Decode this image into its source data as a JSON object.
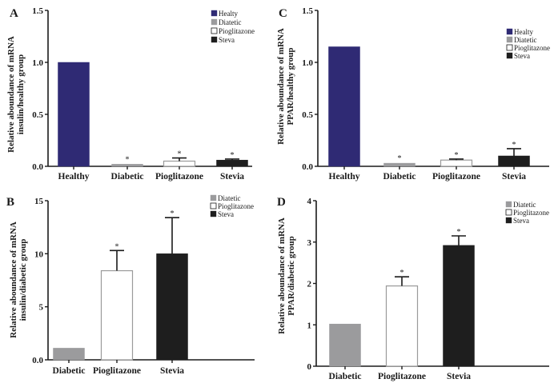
{
  "colors": {
    "healthy": "#2f2a74",
    "diabetic": "#9b9b9d",
    "pioglitazone": "#ffffff",
    "stevia": "#1e1e1e",
    "axis": "#1a1a1a",
    "outline": "#9a9a9a"
  },
  "chart_data": [
    {
      "id": "A",
      "type": "bar",
      "panel_label": "A",
      "title": "",
      "xlabel": "",
      "ylabel_lines": [
        "Relative aboundance of mRNA",
        "insulin/healthy group"
      ],
      "categories": [
        "Healthy",
        "Diabetic",
        "Pioglitazone",
        "Stevia"
      ],
      "series_keys": [
        "healthy",
        "diabetic",
        "pioglitazone",
        "stevia"
      ],
      "values": [
        1.0,
        0.02,
        0.05,
        0.06
      ],
      "error_upper": [
        null,
        null,
        0.08,
        0.07
      ],
      "significance": [
        "",
        "*",
        "*",
        "*"
      ],
      "ylim": [
        0,
        1.5
      ],
      "yticks": [
        0.0,
        0.5,
        1.0,
        1.5
      ],
      "ytick_labels": [
        "0.0",
        "0.5",
        "1.0",
        "1.5"
      ],
      "grid": false,
      "legend": {
        "position": "top-right",
        "entries": [
          {
            "label": "Healty",
            "key": "healthy"
          },
          {
            "label": "Diatetic",
            "key": "diabetic"
          },
          {
            "label": "Pioglitazone",
            "key": "pioglitazone"
          },
          {
            "label": "Steva",
            "key": "stevia"
          }
        ]
      }
    },
    {
      "id": "B",
      "type": "bar",
      "panel_label": "B",
      "title": "",
      "xlabel": "",
      "ylabel_lines": [
        "Relative aboundance of mRNA",
        "insulin/diabetic group"
      ],
      "categories": [
        "Diabetic",
        "Pioglitazone",
        "Stevia"
      ],
      "series_keys": [
        "diabetic",
        "pioglitazone",
        "stevia"
      ],
      "values": [
        1.1,
        8.4,
        10.0
      ],
      "error_upper": [
        null,
        10.3,
        13.4
      ],
      "significance": [
        "",
        "*",
        "*"
      ],
      "ylim": [
        0,
        15
      ],
      "yticks": [
        0,
        5,
        10,
        15
      ],
      "ytick_labels": [
        "0.0",
        "5",
        "10",
        "15"
      ],
      "grid": false,
      "legend": {
        "position": "top-right",
        "entries": [
          {
            "label": "Diatetic",
            "key": "diabetic"
          },
          {
            "label": "Pioglitazone",
            "key": "pioglitazone"
          },
          {
            "label": "Steva",
            "key": "stevia"
          }
        ]
      }
    },
    {
      "id": "C",
      "type": "bar",
      "panel_label": "C",
      "title": "",
      "xlabel": "",
      "ylabel_lines": [
        "Relative aboundance of mRNA",
        "PPAR/healthy group"
      ],
      "categories": [
        "Healthy",
        "Diabetic",
        "Pioglitazone",
        "Stevia"
      ],
      "series_keys": [
        "healthy",
        "diabetic",
        "pioglitazone",
        "stevia"
      ],
      "values": [
        1.15,
        0.03,
        0.06,
        0.1
      ],
      "error_upper": [
        null,
        null,
        0.07,
        0.17
      ],
      "significance": [
        "",
        "*",
        "*",
        "*"
      ],
      "ylim": [
        0,
        1.5
      ],
      "yticks": [
        0.0,
        0.5,
        1.0,
        1.5
      ],
      "ytick_labels": [
        "0.0",
        "0.5",
        "1.0",
        "1.5"
      ],
      "grid": false,
      "legend": {
        "position": "top-right",
        "entries": [
          {
            "label": "Healty",
            "key": "healthy"
          },
          {
            "label": "Diatetic",
            "key": "diabetic"
          },
          {
            "label": "Pioglitazone",
            "key": "pioglitazone"
          },
          {
            "label": "Steva",
            "key": "stevia"
          }
        ]
      }
    },
    {
      "id": "D",
      "type": "bar",
      "panel_label": "D",
      "title": "",
      "xlabel": "",
      "ylabel_lines": [
        "Relative aboundance of mRNA",
        "PPAR/diabetic group"
      ],
      "categories": [
        "Diabetic",
        "Pioglitazone",
        "Stevia"
      ],
      "series_keys": [
        "diabetic",
        "pioglitazone",
        "stevia"
      ],
      "values": [
        1.02,
        1.94,
        2.92
      ],
      "error_upper": [
        null,
        2.16,
        3.15
      ],
      "significance": [
        "",
        "*",
        "*"
      ],
      "ylim": [
        0,
        4
      ],
      "yticks": [
        0,
        1,
        2,
        3,
        4
      ],
      "ytick_labels": [
        "0",
        "1",
        "2",
        "3",
        "4"
      ],
      "grid": false,
      "legend": {
        "position": "top-right",
        "entries": [
          {
            "label": "Diatetic",
            "key": "diabetic"
          },
          {
            "label": "Pioglitazone",
            "key": "pioglitazone"
          },
          {
            "label": "Steva",
            "key": "stevia"
          }
        ]
      }
    }
  ]
}
